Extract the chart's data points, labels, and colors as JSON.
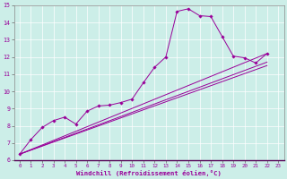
{
  "xlabel": "Windchill (Refroidissement éolien,°C)",
  "bg_color": "#cceee8",
  "line_color": "#990099",
  "grid_color": "#ffffff",
  "xlim": [
    -0.5,
    23.5
  ],
  "ylim": [
    6,
    15
  ],
  "xticks": [
    0,
    1,
    2,
    3,
    4,
    5,
    6,
    7,
    8,
    9,
    10,
    11,
    12,
    13,
    14,
    15,
    16,
    17,
    18,
    19,
    20,
    21,
    22,
    23
  ],
  "yticks": [
    6,
    7,
    8,
    9,
    10,
    11,
    12,
    13,
    14,
    15
  ],
  "series_main": [
    [
      0,
      6.35
    ],
    [
      1,
      7.2
    ],
    [
      2,
      7.9
    ],
    [
      3,
      8.3
    ],
    [
      4,
      8.5
    ],
    [
      5,
      8.1
    ],
    [
      6,
      8.85
    ],
    [
      7,
      9.15
    ],
    [
      8,
      9.2
    ],
    [
      9,
      9.35
    ],
    [
      10,
      9.55
    ],
    [
      11,
      10.5
    ],
    [
      12,
      11.4
    ],
    [
      13,
      12.0
    ],
    [
      14,
      14.65
    ],
    [
      15,
      14.8
    ],
    [
      16,
      14.4
    ],
    [
      17,
      14.35
    ],
    [
      18,
      13.2
    ],
    [
      19,
      12.05
    ],
    [
      20,
      11.95
    ],
    [
      21,
      11.65
    ],
    [
      22,
      12.2
    ]
  ],
  "line_straight1": [
    [
      0,
      6.35
    ],
    [
      22,
      12.2
    ]
  ],
  "line_straight2": [
    [
      0,
      6.35
    ],
    [
      22,
      11.7
    ]
  ],
  "line_straight3": [
    [
      0,
      6.35
    ],
    [
      22,
      11.5
    ]
  ]
}
